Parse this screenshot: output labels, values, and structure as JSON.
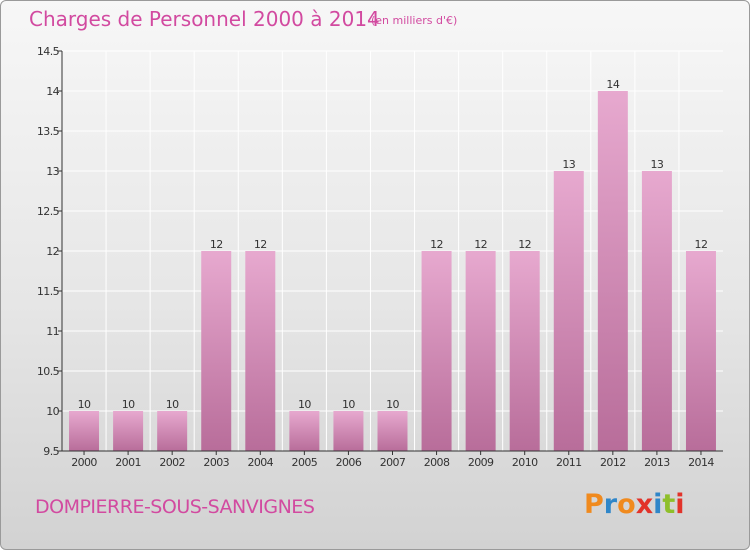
{
  "title": "Charges de Personnel 2000 à 2014",
  "subtitle": "(en milliers d'€)",
  "commune": "DOMPIERRE-SOUS-SANVIGNES",
  "logo": {
    "text": "Proxiti",
    "letter_colors": [
      "#f08a1e",
      "#2f86c9",
      "#f08a1e",
      "#e2332a",
      "#2f86c9",
      "#8fbf2a",
      "#e2332a"
    ]
  },
  "colors": {
    "text_accent": "#d24aa0",
    "bar_top": "#e7a9cf",
    "bar_bottom": "#b86d9a",
    "axis": "#333333",
    "grid": "#ffffff"
  },
  "chart_data": {
    "type": "bar",
    "categories": [
      "2000",
      "2001",
      "2002",
      "2003",
      "2004",
      "2005",
      "2006",
      "2007",
      "2008",
      "2009",
      "2010",
      "2011",
      "2012",
      "2013",
      "2014"
    ],
    "values": [
      10,
      10,
      10,
      12,
      12,
      10,
      10,
      10,
      12,
      12,
      12,
      13,
      14,
      13,
      12
    ],
    "data_labels": [
      "10",
      "10",
      "10",
      "12",
      "12",
      "10",
      "10",
      "10",
      "12",
      "12",
      "12",
      "13",
      "14",
      "13",
      "12"
    ],
    "yticks": [
      9.5,
      10,
      10.5,
      11,
      11.5,
      12,
      12.5,
      13,
      13.5,
      14,
      14.5
    ],
    "ytick_labels": [
      "9.5",
      "10",
      "10.5",
      "11",
      "11.5",
      "12",
      "12.5",
      "13",
      "13.5",
      "14",
      "14.5"
    ],
    "ylim": [
      9.5,
      14.5
    ],
    "xlabel": "",
    "ylabel": "",
    "grid": true,
    "legend": "none"
  }
}
